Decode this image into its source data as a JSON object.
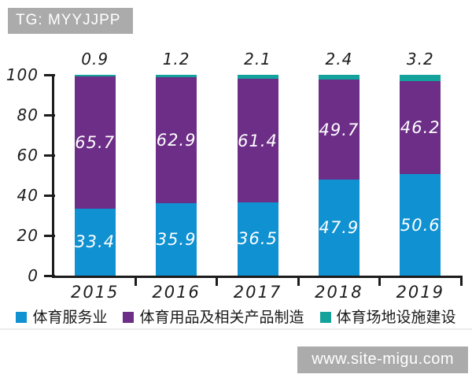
{
  "badge": {
    "text": "TG: MYYJJPP"
  },
  "watermark": {
    "text": "www.site-migu.com"
  },
  "colors": {
    "background": "#ffffff",
    "axis": "#1c1c1c",
    "badge_bg": "#ababab",
    "watermark_bg": "#ababab",
    "divider": "#ececec"
  },
  "chart_data": {
    "type": "bar",
    "variant": "stacked-100-percent",
    "title": "",
    "xlabel": "",
    "ylabel": "",
    "categories": [
      "2015",
      "2016",
      "2017",
      "2018",
      "2019"
    ],
    "series": [
      {
        "name": "体育服务业",
        "color": "#1091d1",
        "values": [
          33.4,
          35.9,
          36.5,
          47.9,
          50.6
        ],
        "value_labels": "inside"
      },
      {
        "name": "体育用品及相关产品制造",
        "color": "#6c2e86",
        "values": [
          65.7,
          62.9,
          61.4,
          49.7,
          46.2
        ],
        "value_labels": "inside"
      },
      {
        "name": "体育场地设施建设",
        "color": "#14a39c",
        "values": [
          0.9,
          1.2,
          2.1,
          2.4,
          3.2
        ],
        "value_labels": "above"
      }
    ],
    "ylim": [
      0,
      100
    ],
    "yticks": [
      0,
      20,
      40,
      60,
      80,
      100
    ],
    "grid": false,
    "legend_position": "bottom",
    "style": "hand-drawn"
  }
}
